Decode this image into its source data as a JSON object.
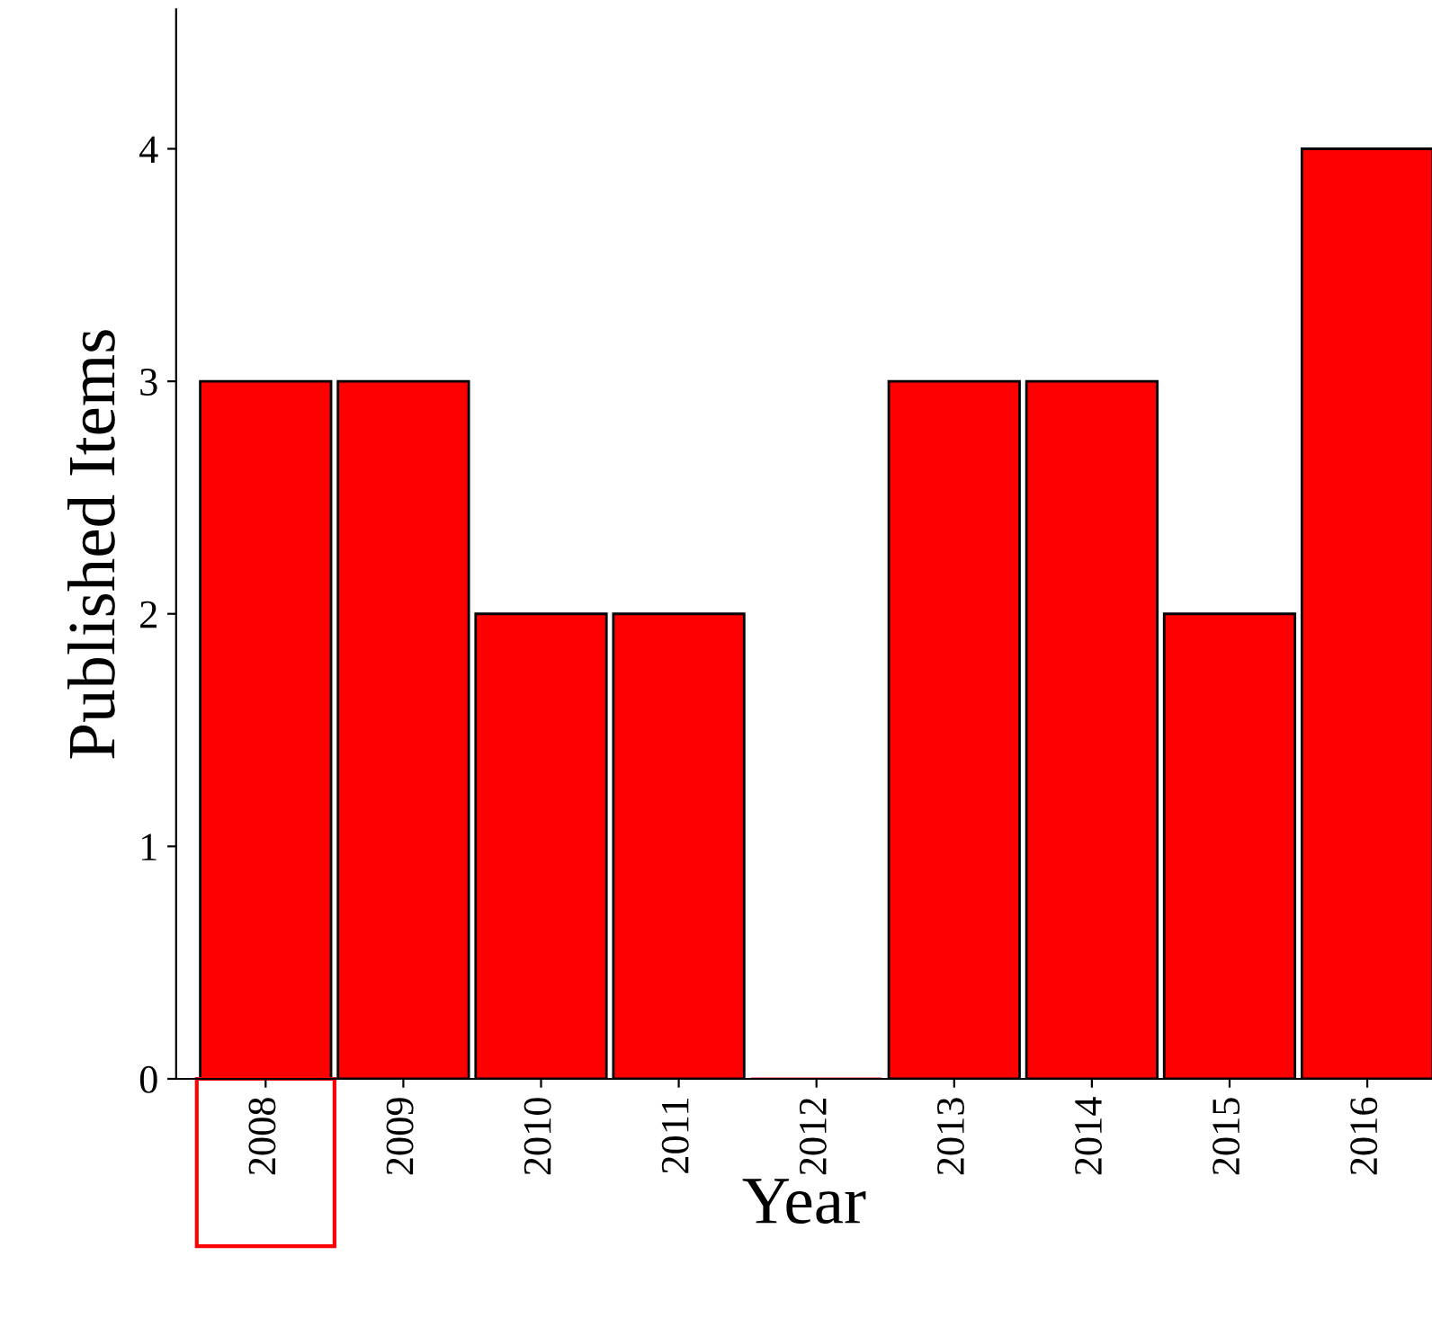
{
  "chart_data": {
    "type": "bar",
    "xlabel": "Year",
    "ylabel": "Published Items",
    "categories": [
      "2008",
      "2009",
      "2010",
      "2011",
      "2012",
      "2013",
      "2014",
      "2015",
      "2016"
    ],
    "values": [
      3,
      3,
      2,
      2,
      0,
      3,
      3,
      2,
      4
    ],
    "color": "#ff0000",
    "ylim": [
      0,
      4.6
    ],
    "yticks": [
      0,
      1,
      2,
      3,
      4
    ],
    "grid": false,
    "legend": false
  }
}
